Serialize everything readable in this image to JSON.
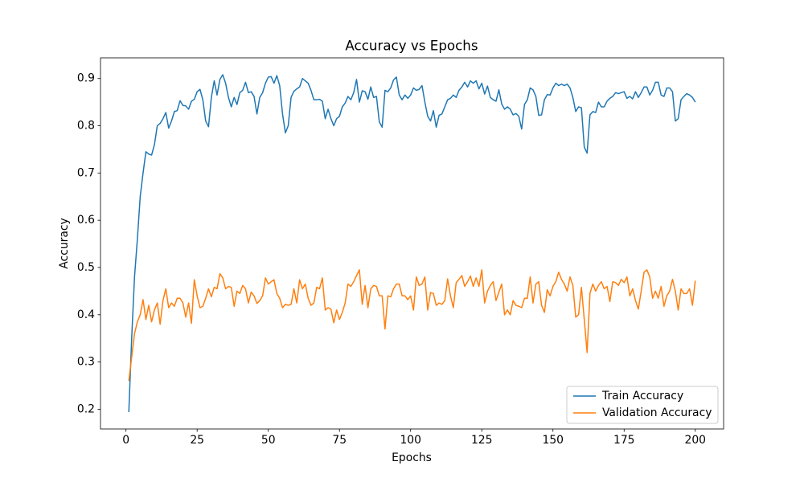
{
  "chart_data": {
    "type": "line",
    "title": "Accuracy vs Epochs",
    "xlabel": "Epochs",
    "ylabel": "Accuracy",
    "x": [
      1,
      2,
      3,
      4,
      5,
      6,
      7,
      8,
      9,
      10,
      11,
      12,
      13,
      14,
      15,
      16,
      17,
      18,
      19,
      20,
      21,
      22,
      23,
      24,
      25,
      26,
      27,
      28,
      29,
      30,
      31,
      32,
      33,
      34,
      35,
      36,
      37,
      38,
      39,
      40,
      41,
      42,
      43,
      44,
      45,
      46,
      47,
      48,
      49,
      50,
      51,
      52,
      53,
      54,
      55,
      56,
      57,
      58,
      59,
      60,
      61,
      62,
      63,
      64,
      65,
      66,
      67,
      68,
      69,
      70,
      71,
      72,
      73,
      74,
      75,
      76,
      77,
      78,
      79,
      80,
      81,
      82,
      83,
      84,
      85,
      86,
      87,
      88,
      89,
      90,
      91,
      92,
      93,
      94,
      95,
      96,
      97,
      98,
      99,
      100,
      101,
      102,
      103,
      104,
      105,
      106,
      107,
      108,
      109,
      110,
      111,
      112,
      113,
      114,
      115,
      116,
      117,
      118,
      119,
      120,
      121,
      122,
      123,
      124,
      125,
      126,
      127,
      128,
      129,
      130,
      131,
      132,
      133,
      134,
      135,
      136,
      137,
      138,
      139,
      140,
      141,
      142,
      143,
      144,
      145,
      146,
      147,
      148,
      149,
      150,
      151,
      152,
      153,
      154,
      155,
      156,
      157,
      158,
      159,
      160,
      161,
      162,
      163,
      164,
      165,
      166,
      167,
      168,
      169,
      170,
      171,
      172,
      173,
      174,
      175,
      176,
      177,
      178,
      179,
      180,
      181,
      182,
      183,
      184,
      185,
      186,
      187,
      188,
      189,
      190,
      191,
      192,
      193,
      194,
      195,
      196,
      197,
      198,
      199,
      200
    ],
    "series": [
      {
        "name": "Train Accuracy",
        "color": "#1f77b4",
        "values": [
          0.194,
          0.35,
          0.48,
          0.56,
          0.65,
          0.7,
          0.745,
          0.74,
          0.738,
          0.76,
          0.8,
          0.805,
          0.815,
          0.828,
          0.795,
          0.81,
          0.83,
          0.832,
          0.853,
          0.843,
          0.842,
          0.835,
          0.852,
          0.856,
          0.872,
          0.877,
          0.855,
          0.81,
          0.798,
          0.86,
          0.895,
          0.865,
          0.898,
          0.908,
          0.89,
          0.86,
          0.84,
          0.86,
          0.845,
          0.87,
          0.875,
          0.892,
          0.87,
          0.872,
          0.862,
          0.825,
          0.86,
          0.87,
          0.89,
          0.903,
          0.904,
          0.89,
          0.906,
          0.885,
          0.825,
          0.785,
          0.8,
          0.86,
          0.873,
          0.878,
          0.882,
          0.9,
          0.895,
          0.89,
          0.875,
          0.855,
          0.855,
          0.856,
          0.852,
          0.815,
          0.835,
          0.815,
          0.8,
          0.815,
          0.82,
          0.84,
          0.848,
          0.862,
          0.855,
          0.87,
          0.898,
          0.85,
          0.874,
          0.872,
          0.856,
          0.882,
          0.86,
          0.862,
          0.808,
          0.797,
          0.875,
          0.872,
          0.88,
          0.897,
          0.903,
          0.865,
          0.855,
          0.865,
          0.858,
          0.865,
          0.88,
          0.875,
          0.877,
          0.885,
          0.85,
          0.82,
          0.81,
          0.832,
          0.797,
          0.822,
          0.825,
          0.84,
          0.855,
          0.858,
          0.865,
          0.86,
          0.875,
          0.882,
          0.892,
          0.882,
          0.895,
          0.89,
          0.895,
          0.878,
          0.89,
          0.867,
          0.884,
          0.86,
          0.855,
          0.852,
          0.876,
          0.846,
          0.835,
          0.84,
          0.835,
          0.823,
          0.826,
          0.82,
          0.793,
          0.845,
          0.855,
          0.88,
          0.876,
          0.862,
          0.822,
          0.823,
          0.855,
          0.866,
          0.865,
          0.88,
          0.89,
          0.885,
          0.888,
          0.885,
          0.888,
          0.88,
          0.86,
          0.83,
          0.84,
          0.838,
          0.755,
          0.742,
          0.823,
          0.83,
          0.828,
          0.85,
          0.84,
          0.84,
          0.852,
          0.858,
          0.862,
          0.87,
          0.868,
          0.87,
          0.872,
          0.858,
          0.862,
          0.857,
          0.872,
          0.86,
          0.87,
          0.882,
          0.882,
          0.865,
          0.875,
          0.892,
          0.892,
          0.865,
          0.862,
          0.88,
          0.88,
          0.872,
          0.81,
          0.815,
          0.855,
          0.862,
          0.868,
          0.865,
          0.86,
          0.85
        ]
      },
      {
        "name": "Validation Accuracy",
        "color": "#ff7f0e",
        "values": [
          0.26,
          0.31,
          0.36,
          0.385,
          0.4,
          0.432,
          0.39,
          0.42,
          0.385,
          0.41,
          0.425,
          0.38,
          0.43,
          0.455,
          0.415,
          0.425,
          0.418,
          0.435,
          0.435,
          0.425,
          0.395,
          0.425,
          0.382,
          0.474,
          0.44,
          0.415,
          0.418,
          0.435,
          0.455,
          0.438,
          0.458,
          0.455,
          0.487,
          0.478,
          0.455,
          0.46,
          0.458,
          0.418,
          0.45,
          0.445,
          0.462,
          0.455,
          0.425,
          0.448,
          0.44,
          0.424,
          0.43,
          0.44,
          0.478,
          0.465,
          0.47,
          0.474,
          0.445,
          0.435,
          0.415,
          0.422,
          0.42,
          0.422,
          0.455,
          0.425,
          0.474,
          0.455,
          0.465,
          0.435,
          0.42,
          0.425,
          0.458,
          0.455,
          0.478,
          0.41,
          0.415,
          0.412,
          0.383,
          0.41,
          0.39,
          0.405,
          0.425,
          0.465,
          0.46,
          0.47,
          0.483,
          0.495,
          0.422,
          0.462,
          0.415,
          0.455,
          0.462,
          0.46,
          0.44,
          0.44,
          0.37,
          0.44,
          0.438,
          0.455,
          0.465,
          0.465,
          0.44,
          0.44,
          0.432,
          0.44,
          0.41,
          0.48,
          0.462,
          0.465,
          0.48,
          0.41,
          0.447,
          0.445,
          0.42,
          0.425,
          0.422,
          0.43,
          0.476,
          0.44,
          0.415,
          0.468,
          0.475,
          0.483,
          0.46,
          0.47,
          0.482,
          0.46,
          0.478,
          0.46,
          0.495,
          0.425,
          0.45,
          0.462,
          0.47,
          0.43,
          0.448,
          0.465,
          0.4,
          0.41,
          0.4,
          0.43,
          0.42,
          0.418,
          0.415,
          0.435,
          0.435,
          0.48,
          0.425,
          0.465,
          0.47,
          0.42,
          0.405,
          0.453,
          0.44,
          0.46,
          0.47,
          0.49,
          0.475,
          0.465,
          0.45,
          0.48,
          0.462,
          0.395,
          0.4,
          0.458,
          0.39,
          0.32,
          0.445,
          0.465,
          0.45,
          0.462,
          0.47,
          0.455,
          0.46,
          0.428,
          0.47,
          0.468,
          0.462,
          0.475,
          0.468,
          0.48,
          0.44,
          0.455,
          0.43,
          0.412,
          0.45,
          0.49,
          0.495,
          0.48,
          0.435,
          0.45,
          0.435,
          0.46,
          0.418,
          0.44,
          0.45,
          0.475,
          0.45,
          0.41,
          0.455,
          0.445,
          0.445,
          0.455,
          0.42,
          0.472
        ]
      }
    ],
    "xlim": [
      -8.95,
      209.95
    ],
    "xticks": [
      0,
      25,
      50,
      75,
      100,
      125,
      150,
      175,
      200
    ],
    "ylim": [
      0.1583,
      0.9437
    ],
    "yticks": [
      0.2,
      0.3,
      0.4,
      0.5,
      0.6,
      0.7,
      0.8,
      0.9
    ],
    "grid": false,
    "legend": "lower right"
  }
}
